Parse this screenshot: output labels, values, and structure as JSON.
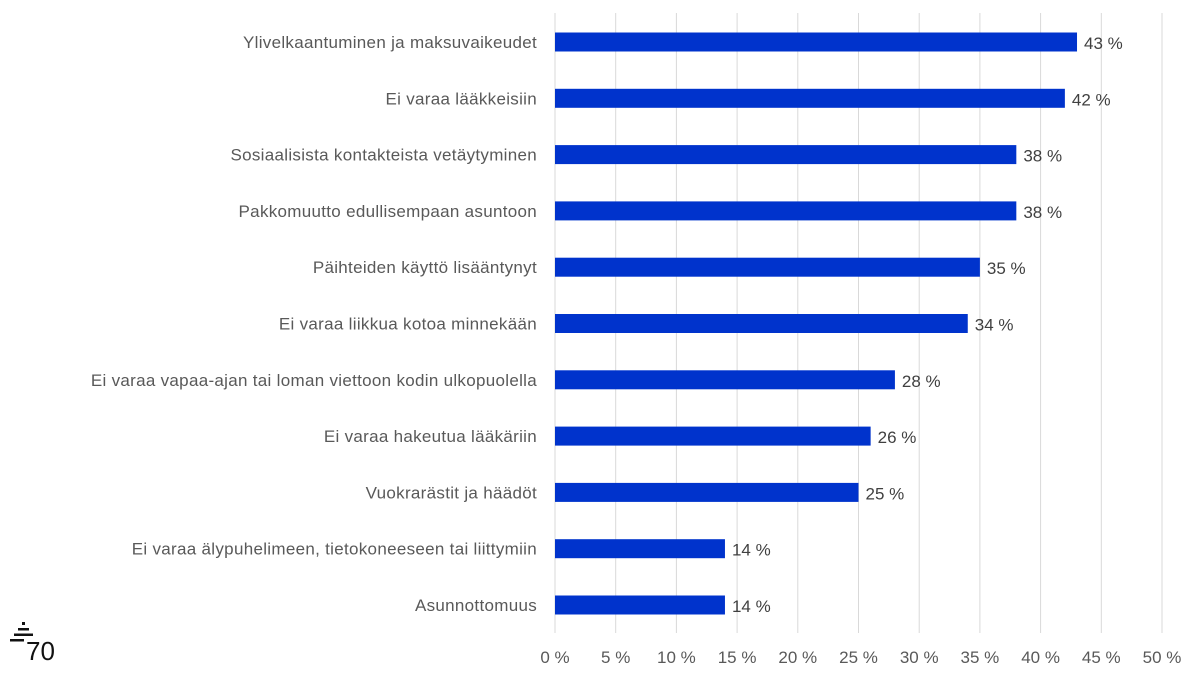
{
  "chart_data": {
    "type": "bar",
    "orientation": "horizontal",
    "categories": [
      "Ylivelkaantuminen ja maksuvaikeudet",
      "Ei varaa lääkkeisiin",
      "Sosiaalisista kontakteista vetäytyminen",
      "Pakkomuutto edullisempaan asuntoon",
      "Päihteiden käyttö lisääntynyt",
      "Ei varaa liikkua kotoa minnekään",
      "Ei varaa vapaa-ajan tai loman viettoon kodin ulkopuolella",
      "Ei varaa hakeutua lääkäriin",
      "Vuokrarästit ja häädöt",
      "Ei varaa älypuhelimeen, tietokoneeseen tai liittymiin",
      "Asunnottomuus"
    ],
    "values": [
      43,
      42,
      38,
      38,
      35,
      34,
      28,
      26,
      25,
      14,
      14
    ],
    "value_labels": [
      "43 %",
      "42 %",
      "38 %",
      "38 %",
      "35 %",
      "34 %",
      "28 %",
      "26 %",
      "25 %",
      "14 %",
      "14 %"
    ],
    "xlim": [
      0,
      50
    ],
    "x_ticks": [
      0,
      5,
      10,
      15,
      20,
      25,
      30,
      35,
      40,
      45,
      50
    ],
    "x_tick_labels": [
      "0 %",
      "5 %",
      "10 %",
      "15 %",
      "20 %",
      "25 %",
      "30 %",
      "35 %",
      "40 %",
      "45 %",
      "50 %"
    ],
    "grid": true,
    "legend": "none",
    "bar_color": "#0033CC",
    "grid_color": "#D9D9D9"
  },
  "logo": {
    "name": "70-logo",
    "text": "70"
  }
}
